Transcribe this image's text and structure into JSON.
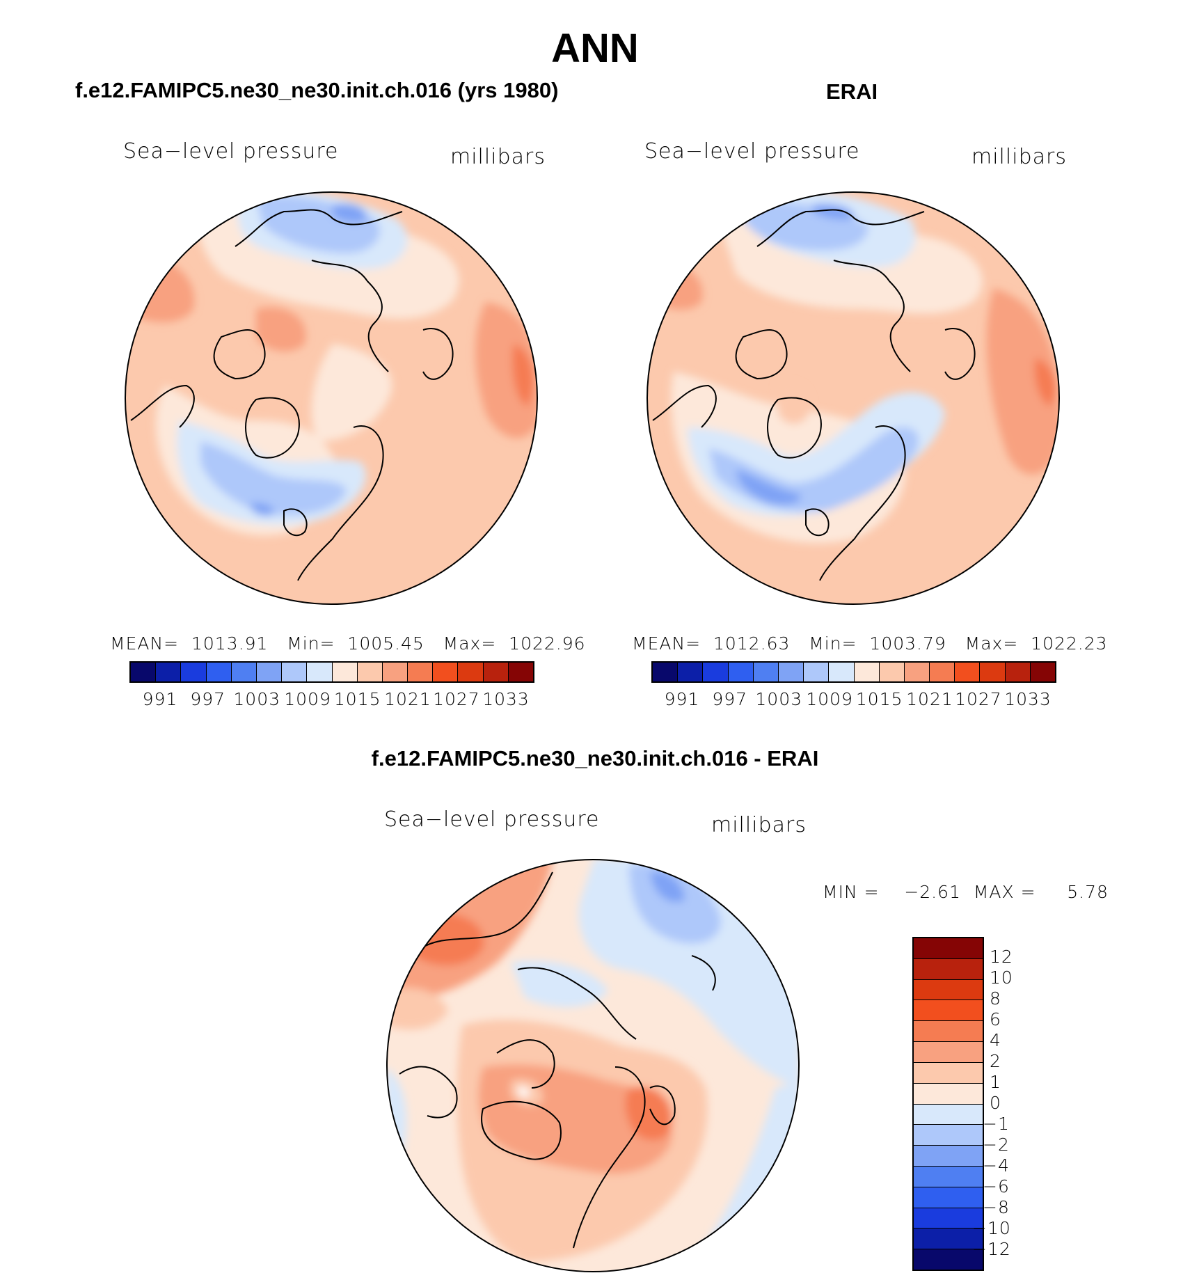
{
  "main_title": "ANN",
  "panels": [
    {
      "title": "f.e12.FAMIPC5.ne30_ne30.init.ch.016 (yrs 1980)",
      "variable": "Sea−level pressure",
      "units": "millibars",
      "stats": "MEAN=  1013.91   Min=  1005.45   Max=  1022.96",
      "colorbar_ticks": [
        "991",
        "997",
        "1003",
        "1009",
        "1015",
        "1021",
        "1027",
        "1033"
      ]
    },
    {
      "title": "ERAI",
      "variable": "Sea−level pressure",
      "units": "millibars",
      "stats": "MEAN=  1012.63   Min=  1003.79   Max=  1022.23",
      "colorbar_ticks": [
        "991",
        "997",
        "1003",
        "1009",
        "1015",
        "1021",
        "1027",
        "1033"
      ]
    }
  ],
  "abs_colors": [
    "#08086b",
    "#0c1fa8",
    "#1a3cde",
    "#2f5ff0",
    "#4f7ff2",
    "#7fa3f5",
    "#aec8fa",
    "#d8e8fb",
    "#fde8da",
    "#fcc9ad",
    "#f8a180",
    "#f57c52",
    "#f24f1e",
    "#dc3a10",
    "#b8220d",
    "#850505"
  ],
  "difference": {
    "title": "f.e12.FAMIPC5.ne30_ne30.init.ch.016 - ERAI",
    "variable": "Sea−level pressure",
    "units": "millibars",
    "stats": "MIN =    −2.61  MAX =     5.78",
    "colorbar_ticks": [
      "12",
      "10",
      "8",
      "6",
      "4",
      "2",
      "1",
      "0",
      "−1",
      "−2",
      "−4",
      "−6",
      "−8",
      "−10",
      "−12"
    ],
    "colors_top_to_bottom": [
      "#850505",
      "#b8220d",
      "#dc3a10",
      "#f24f1e",
      "#f57c52",
      "#f8a180",
      "#fcc9ad",
      "#fde8da",
      "#d8e8fb",
      "#aec8fa",
      "#7fa3f5",
      "#4f7ff2",
      "#2f5ff0",
      "#1a3cde",
      "#0c1fa8",
      "#08086b"
    ]
  }
}
